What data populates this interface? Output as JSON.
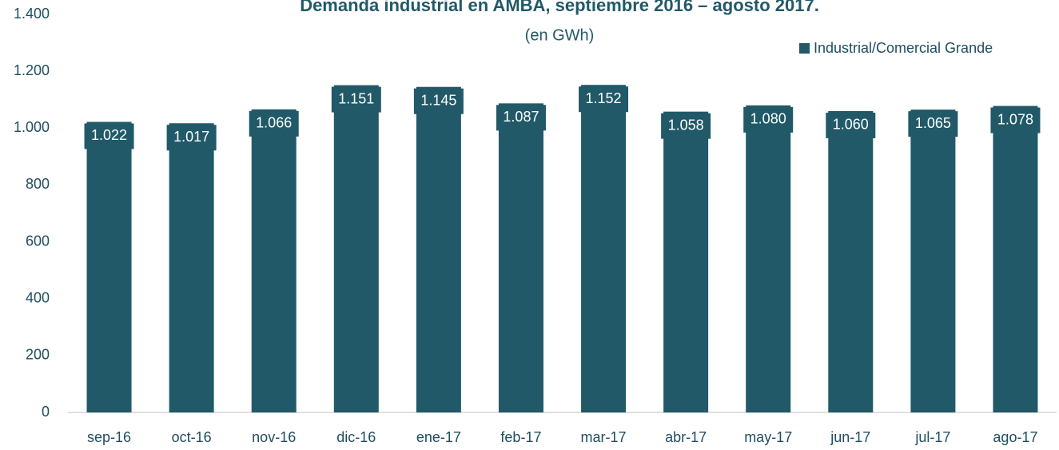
{
  "chart_data": {
    "type": "bar",
    "title": "Demanda industrial en AMBA, septiembre 2016 – agosto 2017.",
    "subtitle": "(en GWh)",
    "categories": [
      "sep-16",
      "oct-16",
      "nov-16",
      "dic-16",
      "ene-17",
      "feb-17",
      "mar-17",
      "abr-17",
      "may-17",
      "jun-17",
      "jul-17",
      "ago-17"
    ],
    "series": [
      {
        "name": "Industrial/Comercial Grande",
        "color": "#215968",
        "values": [
          1022,
          1017,
          1066,
          1151,
          1145,
          1087,
          1152,
          1058,
          1080,
          1060,
          1065,
          1078
        ],
        "value_labels": [
          "1.022",
          "1.017",
          "1.066",
          "1.151",
          "1.145",
          "1.087",
          "1.152",
          "1.058",
          "1.080",
          "1.060",
          "1.065",
          "1.078"
        ]
      }
    ],
    "ylim": [
      0,
      1400
    ],
    "yticks": [
      0,
      200,
      400,
      600,
      800,
      {
        "value": 1000,
        "label": "1.000"
      },
      {
        "value": 1200,
        "label": "1.200"
      },
      {
        "value": 1400,
        "label": "1.400"
      }
    ],
    "grid": false,
    "legend": "top-right"
  }
}
